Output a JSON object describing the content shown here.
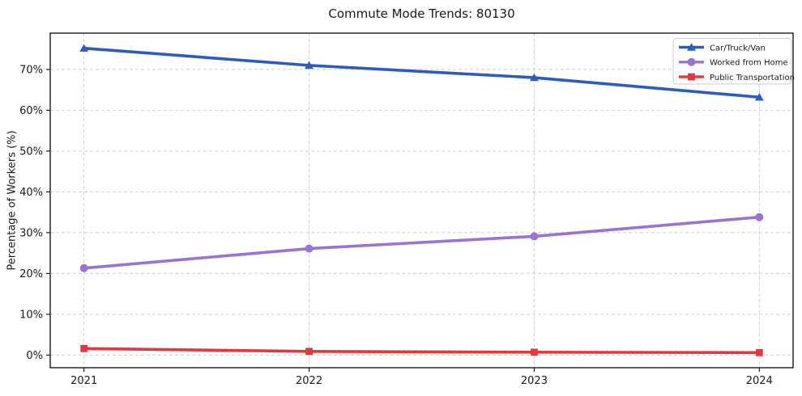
{
  "chart_data": {
    "type": "line",
    "title": "Commute Mode Trends: 80130",
    "xlabel": "",
    "ylabel": "Percentage of Workers (%)",
    "categories": [
      "2021",
      "2022",
      "2023",
      "2024"
    ],
    "series": [
      {
        "name": "Car/Truck/Van",
        "values": [
          75.2,
          71.0,
          68.0,
          63.2
        ],
        "color": "#2b5cbe",
        "marker": "triangle"
      },
      {
        "name": "Worked from Home",
        "values": [
          21.3,
          26.1,
          29.1,
          33.8
        ],
        "color": "#9b73d4",
        "marker": "circle"
      },
      {
        "name": "Public Transportation",
        "values": [
          1.6,
          0.9,
          0.7,
          0.6
        ],
        "color": "#e2393f",
        "marker": "square"
      }
    ],
    "ylim": [
      -3.1,
      78.9
    ],
    "yticks": [
      0,
      10,
      20,
      30,
      40,
      50,
      60,
      70
    ],
    "ytick_labels": [
      "0%",
      "10%",
      "20%",
      "30%",
      "40%",
      "50%",
      "60%",
      "70%"
    ],
    "grid": true,
    "grid_style": "dashed",
    "legend_position": "upper right",
    "colors": {
      "axis": "#1a1a1a",
      "grid": "#cfcfcf",
      "tick_text": "#1a1a1a",
      "legend_border": "#cccccc",
      "plot_background": "#ffffff"
    }
  }
}
